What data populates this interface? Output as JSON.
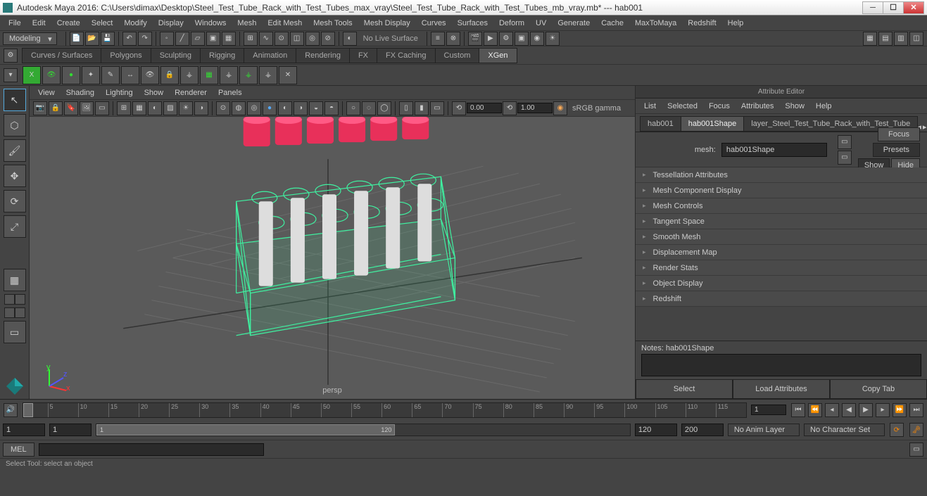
{
  "title": "Autodesk Maya 2016: C:\\Users\\dimax\\Desktop\\Steel_Test_Tube_Rack_with_Test_Tubes_max_vray\\Steel_Test_Tube_Rack_with_Test_Tubes_mb_vray.mb*   ---   hab001",
  "menubar": [
    "File",
    "Edit",
    "Create",
    "Select",
    "Modify",
    "Display",
    "Windows",
    "Mesh",
    "Edit Mesh",
    "Mesh Tools",
    "Mesh Display",
    "Curves",
    "Surfaces",
    "Deform",
    "UV",
    "Generate",
    "Cache",
    "MaxToMaya",
    "Redshift",
    "Help"
  ],
  "workspace": "Modeling",
  "nolive": "No Live Surface",
  "shelftabs": [
    "Curves / Surfaces",
    "Polygons",
    "Sculpting",
    "Rigging",
    "Animation",
    "Rendering",
    "FX",
    "FX Caching",
    "Custom",
    "XGen"
  ],
  "shelfactive": "XGen",
  "viewmenu": [
    "View",
    "Shading",
    "Lighting",
    "Show",
    "Renderer",
    "Panels"
  ],
  "exposure": "0.00",
  "gamma": "1.00",
  "colorspace": "sRGB gamma",
  "persp": "persp",
  "attr": {
    "title": "Attribute Editor",
    "menu": [
      "List",
      "Selected",
      "Focus",
      "Attributes",
      "Show",
      "Help"
    ],
    "tabs": [
      "hab001",
      "hab001Shape",
      "layer_Steel_Test_Tube_Rack_with_Test_Tube"
    ],
    "activetab": "hab001Shape",
    "meshlabel": "mesh:",
    "meshname": "hab001Shape",
    "buttons": {
      "focus": "Focus",
      "presets": "Presets",
      "show": "Show",
      "hide": "Hide"
    },
    "sections": [
      "Tessellation Attributes",
      "Mesh Component Display",
      "Mesh Controls",
      "Tangent Space",
      "Smooth Mesh",
      "Displacement Map",
      "Render Stats",
      "Object Display",
      "Redshift"
    ],
    "noteslabel": "Notes:  hab001Shape",
    "bottom": {
      "select": "Select",
      "load": "Load Attributes",
      "copy": "Copy Tab"
    }
  },
  "timeline": {
    "start": 1,
    "end": 120,
    "visstart": 1,
    "visend": 120,
    "rangeend": 200,
    "ticks": [
      1,
      5,
      10,
      15,
      20,
      25,
      30,
      35,
      40,
      45,
      50,
      55,
      60,
      65,
      70,
      75,
      80,
      85,
      90,
      95,
      100,
      105,
      110,
      115,
      120
    ],
    "current": 1
  },
  "animlayer": "No Anim Layer",
  "charset": "No Character Set",
  "cmd": "MEL",
  "helpline": "Select Tool: select an object",
  "colors": {
    "wire": "#3ff0a0",
    "caps": "#e8305a",
    "tubes": "#ddd",
    "grid": "#6a6a6a",
    "sel": "#5ad"
  }
}
